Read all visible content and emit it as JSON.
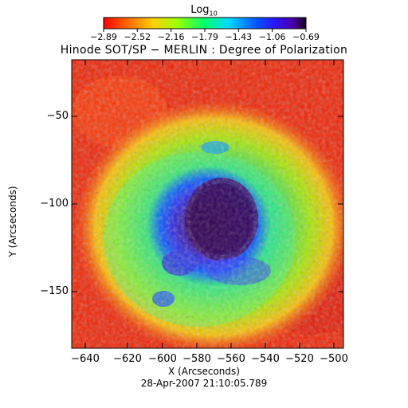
{
  "colorbar": {
    "title": "Log",
    "title_subscript": "10",
    "ticks": [
      "−2.89",
      "−2.52",
      "−2.16",
      "−1.79",
      "−1.43",
      "−1.06",
      "−0.69"
    ],
    "colormap": [
      "#ff0000",
      "#ff6a00",
      "#ffcc00",
      "#9fff00",
      "#00ff6a",
      "#00d0ff",
      "#0060ff",
      "#2020ff",
      "#4000c0",
      "#200030"
    ]
  },
  "title": "Hinode SOT/SP − MERLIN : Degree of Polarization",
  "x_axis": {
    "label": "X (Arcseconds)",
    "ticks": [
      "−640",
      "−620",
      "−600",
      "−580",
      "−560",
      "−540",
      "−520",
      "−500"
    ]
  },
  "y_axis": {
    "label": "Y (Arcseconds)",
    "ticks": [
      "−50",
      "−100",
      "−150"
    ]
  },
  "timestamp": "28-Apr-2007 21:10:05.789"
}
